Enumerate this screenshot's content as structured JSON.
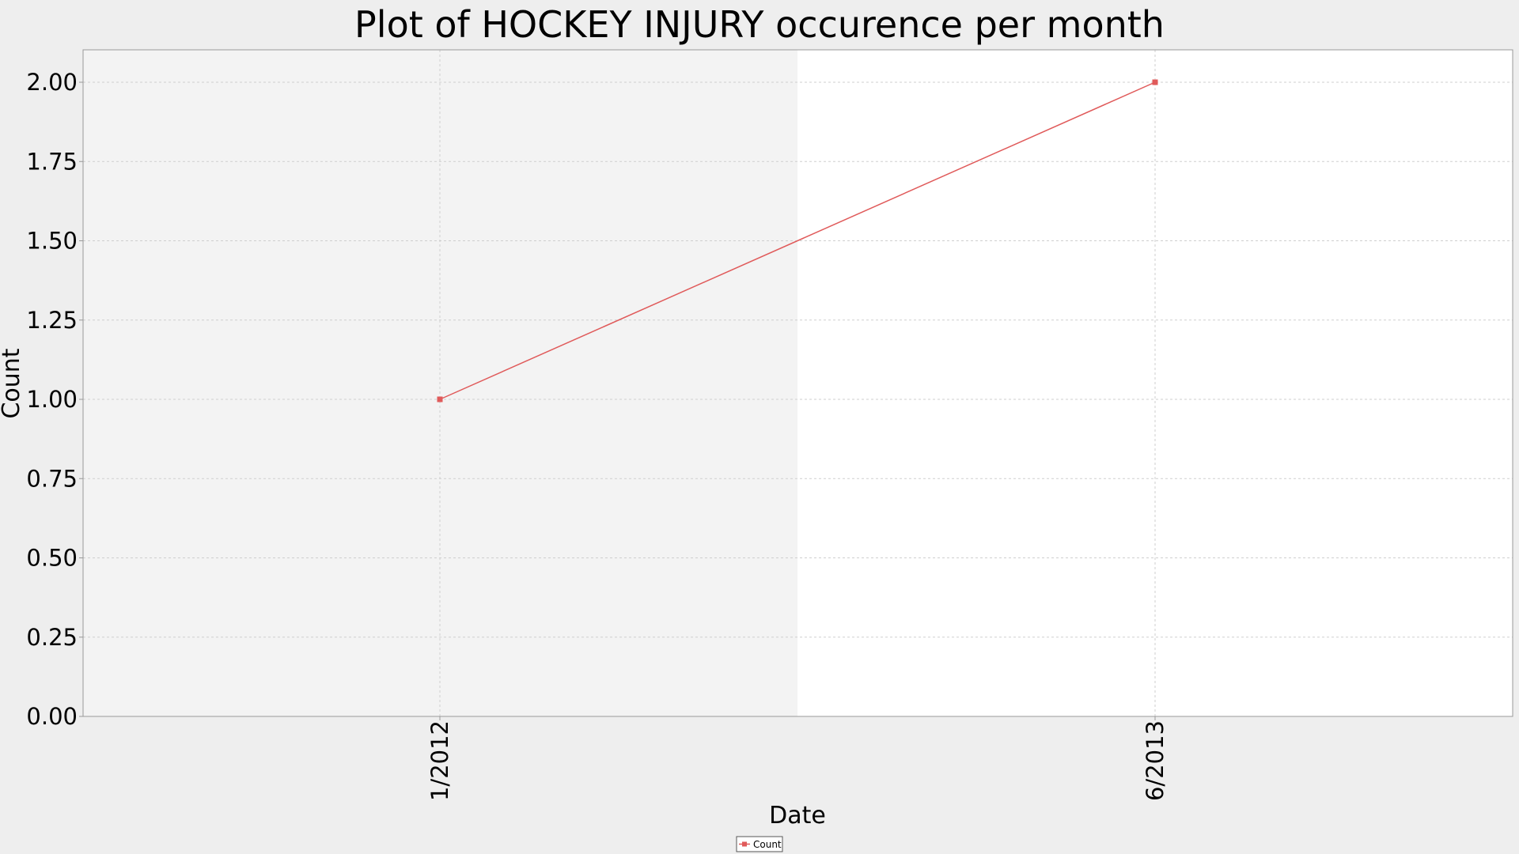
{
  "chart_data": {
    "type": "line",
    "title": "Plot of HOCKEY INJURY occurence per month",
    "xlabel": "Date",
    "ylabel": "Count",
    "categories": [
      "1/2012",
      "6/2013"
    ],
    "ylim": [
      0,
      2
    ],
    "yticks": [
      "0.00",
      "0.25",
      "0.50",
      "0.75",
      "1.00",
      "1.25",
      "1.50",
      "1.75",
      "2.00"
    ],
    "series": [
      {
        "name": "Count",
        "values": [
          1,
          2
        ],
        "color": "#e05a5a"
      }
    ],
    "grid": true,
    "legend_position": "bottom-center",
    "colors": {
      "background": "#eeeeee",
      "plot_band_left": "#f3f3f3",
      "plot_band_right": "#ffffff",
      "series": "#e05a5a"
    }
  }
}
